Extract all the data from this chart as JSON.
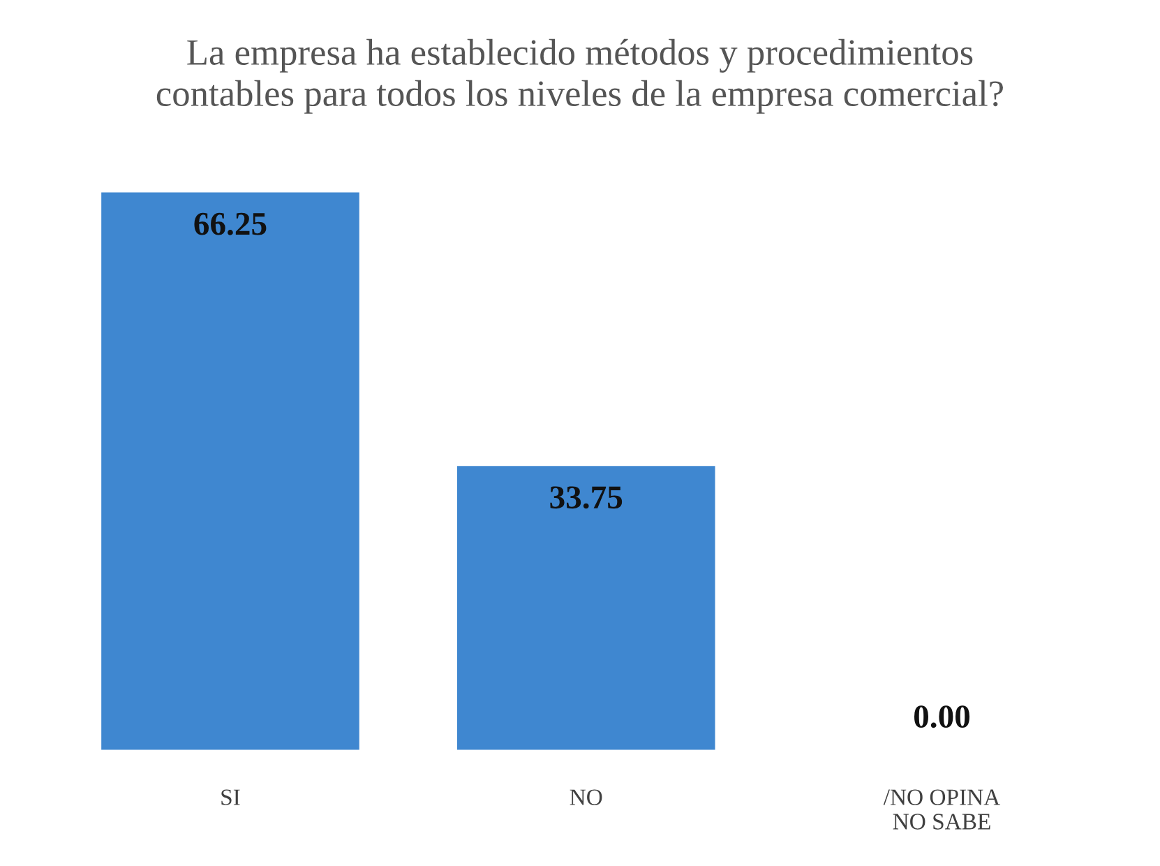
{
  "chart_data": {
    "type": "bar",
    "title": "La empresa ha establecido métodos y procedimientos\ncontables para todos los niveles de la empresa comercial?",
    "categories": [
      "SI",
      "NO",
      "/NO OPINA\nNO SABE"
    ],
    "values": [
      66.25,
      33.75,
      0
    ],
    "value_labels": [
      "66.25",
      "33.75",
      "0.00"
    ],
    "color": "#3f87d0",
    "grid": false,
    "legend": false
  }
}
